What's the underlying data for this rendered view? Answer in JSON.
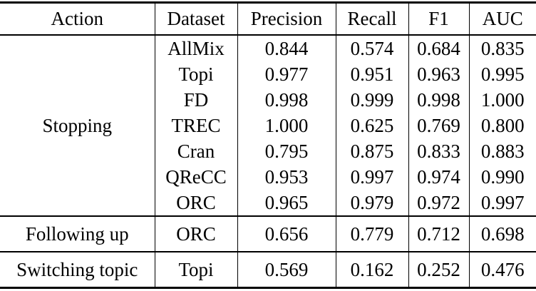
{
  "page": {
    "background": "#ffffff",
    "text_color": "#000000",
    "rule_color": "#000000"
  },
  "table": {
    "columns": [
      {
        "key": "action",
        "label": "Action"
      },
      {
        "key": "dataset",
        "label": "Dataset"
      },
      {
        "key": "precision",
        "label": "Precision"
      },
      {
        "key": "recall",
        "label": "Recall"
      },
      {
        "key": "f1",
        "label": "F1"
      },
      {
        "key": "auc",
        "label": "AUC"
      }
    ],
    "sections": [
      {
        "action": "Stopping",
        "rows": [
          {
            "dataset": "AllMix",
            "precision": "0.844",
            "recall": "0.574",
            "f1": "0.684",
            "auc": "0.835"
          },
          {
            "dataset": "Topi",
            "precision": "0.977",
            "recall": "0.951",
            "f1": "0.963",
            "auc": "0.995"
          },
          {
            "dataset": "FD",
            "precision": "0.998",
            "recall": "0.999",
            "f1": "0.998",
            "auc": "1.000"
          },
          {
            "dataset": "TREC",
            "precision": "1.000",
            "recall": "0.625",
            "f1": "0.769",
            "auc": "0.800"
          },
          {
            "dataset": "Cran",
            "precision": "0.795",
            "recall": "0.875",
            "f1": "0.833",
            "auc": "0.883"
          },
          {
            "dataset": "QReCC",
            "precision": "0.953",
            "recall": "0.997",
            "f1": "0.974",
            "auc": "0.990"
          },
          {
            "dataset": "ORC",
            "precision": "0.965",
            "recall": "0.979",
            "f1": "0.972",
            "auc": "0.997"
          }
        ]
      },
      {
        "action": "Following up",
        "rows": [
          {
            "dataset": "ORC",
            "precision": "0.656",
            "recall": "0.779",
            "f1": "0.712",
            "auc": "0.698"
          }
        ]
      },
      {
        "action": "Switching topic",
        "rows": [
          {
            "dataset": "Topi",
            "precision": "0.569",
            "recall": "0.162",
            "f1": "0.252",
            "auc": "0.476"
          }
        ]
      }
    ]
  }
}
